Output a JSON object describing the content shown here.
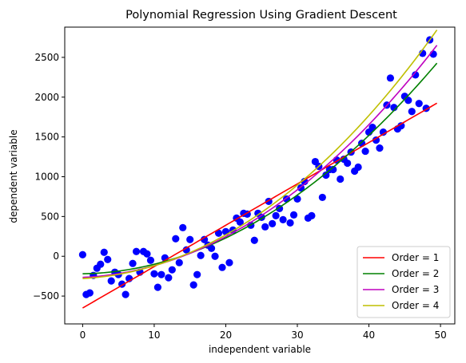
{
  "chart_data": {
    "type": "scatter",
    "title": "Polynomial Regression Using Gradient Descent",
    "xlabel": "independent variable",
    "ylabel": "dependent variable",
    "xlim": [
      -2.5,
      52
    ],
    "ylim": [
      -850,
      2880
    ],
    "xticks": [
      0,
      10,
      20,
      30,
      40,
      50
    ],
    "yticks": [
      -500,
      0,
      500,
      1000,
      1500,
      2000,
      2500
    ],
    "ytick_labels": [
      "−500",
      "0",
      "500",
      "1000",
      "1500",
      "2000",
      "2500"
    ],
    "grid": false,
    "legend_position": "lower right",
    "scatter": {
      "color": "#0000ff",
      "points": [
        [
          0,
          20
        ],
        [
          0.5,
          -480
        ],
        [
          1,
          -460
        ],
        [
          1.5,
          -240
        ],
        [
          2,
          -150
        ],
        [
          2.5,
          -100
        ],
        [
          3,
          50
        ],
        [
          3.5,
          -40
        ],
        [
          4,
          -310
        ],
        [
          4.5,
          -200
        ],
        [
          5,
          -230
        ],
        [
          5.5,
          -350
        ],
        [
          6,
          -480
        ],
        [
          6.5,
          -280
        ],
        [
          7,
          -90
        ],
        [
          7.5,
          60
        ],
        [
          8,
          -200
        ],
        [
          8.5,
          60
        ],
        [
          9,
          30
        ],
        [
          9.5,
          -50
        ],
        [
          10,
          -220
        ],
        [
          10.5,
          -390
        ],
        [
          11,
          -230
        ],
        [
          11.5,
          -20
        ],
        [
          12,
          -270
        ],
        [
          12.5,
          -170
        ],
        [
          13,
          220
        ],
        [
          13.5,
          -80
        ],
        [
          14,
          360
        ],
        [
          14.5,
          80
        ],
        [
          15,
          210
        ],
        [
          15.5,
          -360
        ],
        [
          16,
          -230
        ],
        [
          16.5,
          10
        ],
        [
          17,
          210
        ],
        [
          17.5,
          140
        ],
        [
          18,
          100
        ],
        [
          18.5,
          0
        ],
        [
          19,
          290
        ],
        [
          19.5,
          -140
        ],
        [
          20,
          310
        ],
        [
          20.5,
          -80
        ],
        [
          21,
          330
        ],
        [
          21.5,
          480
        ],
        [
          22,
          430
        ],
        [
          22.5,
          540
        ],
        [
          23,
          530
        ],
        [
          23.5,
          390
        ],
        [
          24,
          200
        ],
        [
          24.5,
          540
        ],
        [
          25,
          490
        ],
        [
          25.5,
          370
        ],
        [
          26,
          690
        ],
        [
          26.5,
          410
        ],
        [
          27,
          510
        ],
        [
          27.5,
          600
        ],
        [
          28,
          460
        ],
        [
          28.5,
          720
        ],
        [
          29,
          420
        ],
        [
          29.5,
          520
        ],
        [
          30,
          720
        ],
        [
          30.5,
          860
        ],
        [
          31,
          940
        ],
        [
          31.5,
          480
        ],
        [
          32,
          510
        ],
        [
          32.5,
          1190
        ],
        [
          33,
          1130
        ],
        [
          33.5,
          740
        ],
        [
          34,
          1020
        ],
        [
          34.5,
          1090
        ],
        [
          35,
          1090
        ],
        [
          35.5,
          1210
        ],
        [
          36,
          970
        ],
        [
          36.5,
          1220
        ],
        [
          37,
          1170
        ],
        [
          37.5,
          1310
        ],
        [
          38,
          1070
        ],
        [
          38.5,
          1120
        ],
        [
          39,
          1420
        ],
        [
          39.5,
          1320
        ],
        [
          40,
          1560
        ],
        [
          40.5,
          1620
        ],
        [
          41,
          1460
        ],
        [
          41.5,
          1360
        ],
        [
          42,
          1560
        ],
        [
          42.5,
          1900
        ],
        [
          43,
          2240
        ],
        [
          43.5,
          1870
        ],
        [
          44,
          1600
        ],
        [
          44.5,
          1640
        ],
        [
          45,
          2010
        ],
        [
          45.5,
          1960
        ],
        [
          46,
          1820
        ],
        [
          46.5,
          2280
        ],
        [
          47,
          1920
        ],
        [
          47.5,
          2550
        ],
        [
          48,
          1860
        ],
        [
          48.5,
          2720
        ],
        [
          49,
          2540
        ]
      ]
    },
    "series": [
      {
        "name": "Order = 1",
        "color": "#ff0000",
        "x_range": [
          0,
          49.5
        ],
        "coeffs": [
          -650,
          52
        ]
      },
      {
        "name": "Order = 2",
        "color": "#008000",
        "x_range": [
          0,
          49.5
        ],
        "coeffs": [
          -220,
          1.5,
          1.05
        ]
      },
      {
        "name": "Order = 3",
        "color": "#bf00bf",
        "x_range": [
          0,
          49.5
        ],
        "coeffs": [
          -265,
          4,
          1.06,
          0.001
        ]
      },
      {
        "name": "Order = 4",
        "color": "#bfbf00",
        "x_range": [
          0,
          49.5
        ],
        "coeffs": [
          -280,
          5,
          1.1,
          0.001,
          1e-05
        ]
      }
    ]
  }
}
